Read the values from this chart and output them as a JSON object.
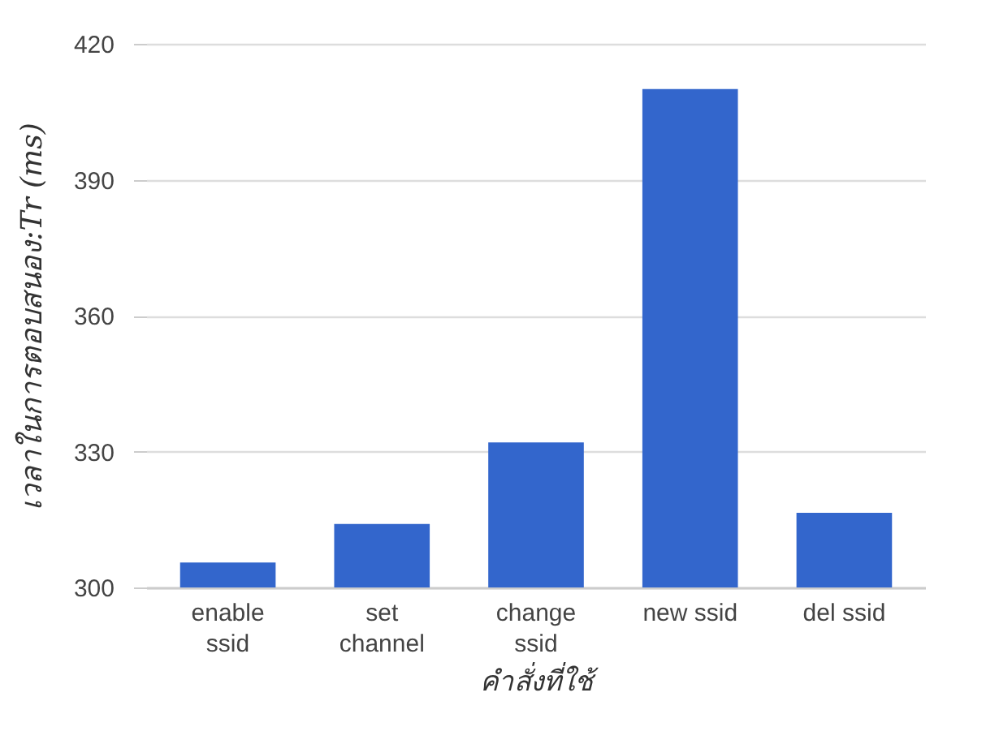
{
  "chart_data": {
    "type": "bar",
    "xlabel": "คำสั่งที่ใช้",
    "ylabel": "เวลาในการตอบสนอง:Tr (ms)",
    "categories": [
      "enable ssid",
      "set channel",
      "change ssid",
      "new ssid",
      "del ssid"
    ],
    "values": [
      305.5,
      314,
      332,
      410,
      316.5
    ],
    "color": "#3366cc",
    "ylim": [
      300,
      420
    ],
    "yticks": [
      300,
      330,
      360,
      390,
      420
    ],
    "grid": "y"
  }
}
